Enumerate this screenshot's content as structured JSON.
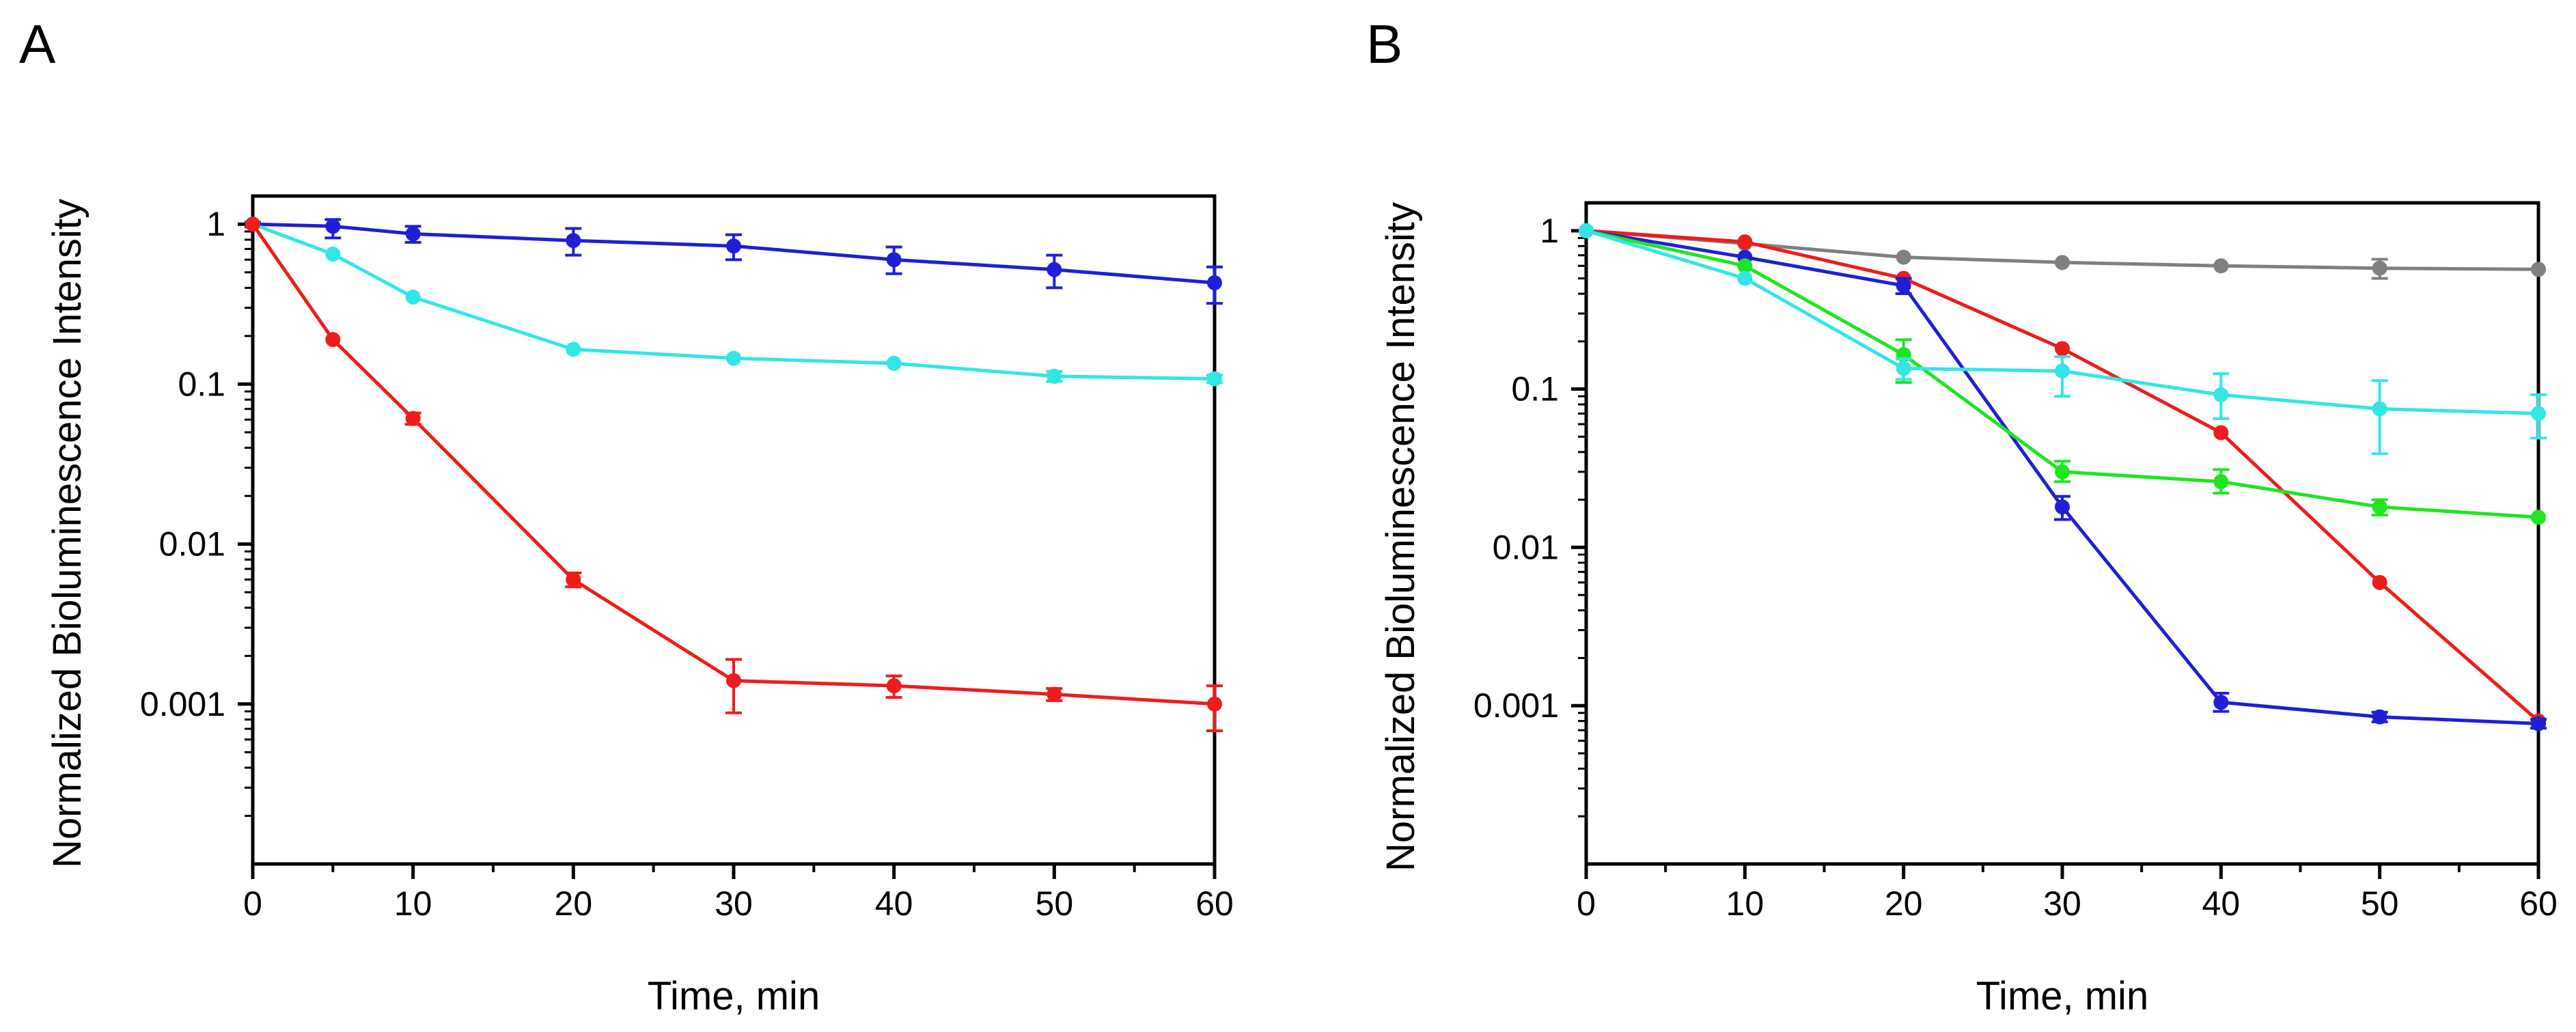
{
  "chart_data": [
    {
      "panel": "A",
      "type": "line",
      "y_scale": "log",
      "xlabel": "Time, min",
      "ylabel": "Normalized Bioluminescence Intensity",
      "xlim": [
        0,
        60
      ],
      "ylim": [
        0.0001,
        1.5
      ],
      "x_ticks": [
        0,
        10,
        20,
        30,
        40,
        50,
        60
      ],
      "x_tick_labels": [
        "0",
        "10",
        "20",
        "30",
        "40",
        "50",
        "60"
      ],
      "y_ticks": [
        1,
        0.1,
        0.01,
        0.001
      ],
      "y_tick_labels": [
        "1",
        "0.1",
        "0.01",
        "0.001"
      ],
      "grid": false,
      "series": [
        {
          "name": "blue",
          "color": "#1f1fd6",
          "x": [
            0,
            5,
            10,
            20,
            30,
            40,
            50,
            60
          ],
          "y": [
            1,
            0.97,
            0.87,
            0.79,
            0.73,
            0.6,
            0.52,
            0.43
          ],
          "err_low": [
            0.96,
            0.82,
            0.77,
            0.64,
            0.6,
            0.49,
            0.4,
            0.32
          ],
          "err_high": [
            1.03,
            1.07,
            0.97,
            0.94,
            0.86,
            0.72,
            0.64,
            0.54
          ]
        },
        {
          "name": "cyan",
          "color": "#33e6e6",
          "x": [
            0,
            5,
            10,
            20,
            30,
            40,
            50,
            60
          ],
          "y": [
            1,
            0.65,
            0.35,
            0.165,
            0.145,
            0.135,
            0.112,
            0.108
          ],
          "err_low": [
            null,
            null,
            null,
            null,
            null,
            null,
            0.104,
            0.102
          ],
          "err_high": [
            null,
            null,
            null,
            null,
            null,
            null,
            0.12,
            0.114
          ]
        },
        {
          "name": "red",
          "color": "#ee1c1c",
          "x": [
            0,
            5,
            10,
            20,
            30,
            40,
            50,
            60
          ],
          "y": [
            1,
            0.19,
            0.061,
            0.006,
            0.0014,
            0.0013,
            0.00115,
            0.001
          ],
          "err_low": [
            null,
            null,
            0.056,
            0.0054,
            0.00088,
            0.0011,
            0.00105,
            0.00068
          ],
          "err_high": [
            null,
            null,
            0.066,
            0.0066,
            0.0019,
            0.0015,
            0.00125,
            0.0013
          ]
        }
      ]
    },
    {
      "panel": "B",
      "type": "line",
      "y_scale": "log",
      "xlabel": "Time, min",
      "ylabel": "Normalized Bioluminescence Intensity",
      "xlim": [
        0,
        60
      ],
      "ylim": [
        0.0001,
        1.5
      ],
      "x_ticks": [
        0,
        10,
        20,
        30,
        40,
        50,
        60
      ],
      "x_tick_labels": [
        "0",
        "10",
        "20",
        "30",
        "40",
        "50",
        "60"
      ],
      "y_ticks": [
        1,
        0.1,
        0.01,
        0.001
      ],
      "y_tick_labels": [
        "1",
        "0.1",
        "0.01",
        "0.001"
      ],
      "grid": false,
      "series": [
        {
          "name": "gray",
          "color": "#808080",
          "x": [
            0,
            10,
            20,
            30,
            40,
            50,
            60
          ],
          "y": [
            1,
            0.83,
            0.68,
            0.63,
            0.6,
            0.58,
            0.57
          ],
          "err_low": [
            null,
            null,
            null,
            null,
            null,
            0.5,
            null
          ],
          "err_high": [
            null,
            null,
            null,
            null,
            null,
            0.66,
            null
          ]
        },
        {
          "name": "red",
          "color": "#ee1c1c",
          "x": [
            0,
            10,
            20,
            30,
            40,
            50,
            60
          ],
          "y": [
            1,
            0.85,
            0.5,
            0.18,
            0.053,
            0.006,
            0.0008
          ],
          "err_low": [
            null,
            null,
            null,
            null,
            null,
            null,
            null
          ],
          "err_high": [
            null,
            null,
            null,
            null,
            null,
            null,
            null
          ]
        },
        {
          "name": "blue",
          "color": "#1f1fd6",
          "x": [
            0,
            10,
            20,
            30,
            40,
            50,
            60
          ],
          "y": [
            1,
            0.68,
            0.45,
            0.018,
            0.00105,
            0.00085,
            0.00077
          ],
          "err_low": [
            null,
            null,
            0.4,
            0.015,
            0.00092,
            0.00079,
            0.00072
          ],
          "err_high": [
            null,
            null,
            0.5,
            0.021,
            0.0012,
            0.00091,
            0.00082
          ]
        },
        {
          "name": "green",
          "color": "#1ee61e",
          "x": [
            0,
            10,
            20,
            30,
            40,
            50,
            60
          ],
          "y": [
            1,
            0.6,
            0.165,
            0.03,
            0.026,
            0.018,
            0.0155
          ],
          "err_low": [
            null,
            null,
            0.11,
            0.026,
            0.022,
            0.016,
            null
          ],
          "err_high": [
            null,
            null,
            0.205,
            0.035,
            0.031,
            0.02,
            null
          ]
        },
        {
          "name": "cyan",
          "color": "#33e6e6",
          "x": [
            0,
            10,
            20,
            30,
            40,
            50,
            60
          ],
          "y": [
            1,
            0.5,
            0.135,
            0.13,
            0.092,
            0.075,
            0.07
          ],
          "err_low": [
            null,
            null,
            0.115,
            0.09,
            0.065,
            0.039,
            0.049
          ],
          "err_high": [
            null,
            null,
            0.155,
            0.16,
            0.125,
            0.113,
            0.092
          ]
        }
      ]
    }
  ]
}
